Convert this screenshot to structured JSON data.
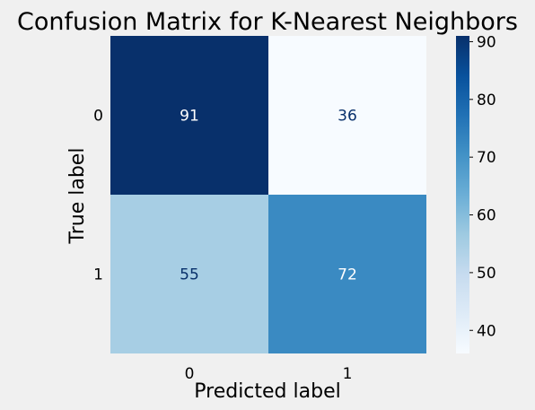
{
  "chart_data": {
    "type": "heatmap",
    "title": "Confusion Matrix for K-Nearest Neighbors",
    "xlabel": "Predicted label",
    "ylabel": "True label",
    "x_categories": [
      "0",
      "1"
    ],
    "y_categories": [
      "0",
      "1"
    ],
    "values": [
      [
        91,
        36
      ],
      [
        55,
        72
      ]
    ],
    "colormap": "Blues",
    "colorbar": {
      "range": [
        36,
        91
      ],
      "ticks": [
        40,
        50,
        60,
        70,
        80,
        90
      ],
      "tick_labels": [
        "40",
        "50",
        "60",
        "70",
        "80",
        "90"
      ]
    },
    "grid": false
  },
  "colors": {
    "background": "#f0f0f0",
    "text_on_light": "#08306b",
    "text_on_dark": "#ffffff"
  }
}
